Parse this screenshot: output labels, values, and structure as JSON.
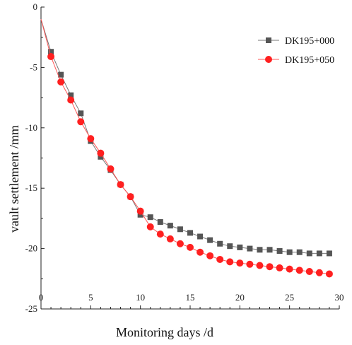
{
  "chart_data": {
    "type": "line",
    "title": "",
    "xlabel": "Monitoring days /d",
    "ylabel": "vault settlement /mm",
    "xlim": [
      0,
      30
    ],
    "ylim": [
      -25,
      0
    ],
    "xticks": [
      0,
      5,
      10,
      15,
      20,
      25,
      30
    ],
    "yticks": [
      0,
      -5,
      -10,
      -15,
      -20,
      -25
    ],
    "grid": false,
    "legend_position": "top-right",
    "series": [
      {
        "name": "DK195+000",
        "marker": "square",
        "color": "#555555",
        "line_color": "#777777",
        "x": [
          0,
          1,
          2,
          3,
          4,
          5,
          6,
          7,
          8,
          9,
          10,
          11,
          12,
          13,
          14,
          15,
          16,
          17,
          18,
          19,
          20,
          21,
          22,
          23,
          24,
          25,
          26,
          27,
          28,
          29
        ],
        "y": [
          -1.0,
          -3.7,
          -5.6,
          -7.3,
          -8.8,
          -11.1,
          -12.4,
          -13.5,
          -14.7,
          -15.7,
          -17.2,
          -17.4,
          -17.8,
          -18.1,
          -18.4,
          -18.7,
          -19.0,
          -19.3,
          -19.6,
          -19.8,
          -19.9,
          -20.0,
          -20.1,
          -20.1,
          -20.2,
          -20.3,
          -20.3,
          -20.4,
          -20.4,
          -20.4
        ]
      },
      {
        "name": "DK195+050",
        "marker": "circle",
        "color": "#ff2020",
        "line_color": "#ff5555",
        "x": [
          0,
          1,
          2,
          3,
          4,
          5,
          6,
          7,
          8,
          9,
          10,
          11,
          12,
          13,
          14,
          15,
          16,
          17,
          18,
          19,
          20,
          21,
          22,
          23,
          24,
          25,
          26,
          27,
          28,
          29
        ],
        "y": [
          -1.0,
          -4.1,
          -6.2,
          -7.7,
          -9.5,
          -10.9,
          -12.1,
          -13.4,
          -14.7,
          -15.7,
          -16.9,
          -18.2,
          -18.8,
          -19.2,
          -19.6,
          -19.9,
          -20.3,
          -20.6,
          -20.9,
          -21.1,
          -21.2,
          -21.3,
          -21.4,
          -21.5,
          -21.6,
          -21.7,
          -21.8,
          -21.9,
          -22.0,
          -22.1
        ]
      }
    ]
  }
}
